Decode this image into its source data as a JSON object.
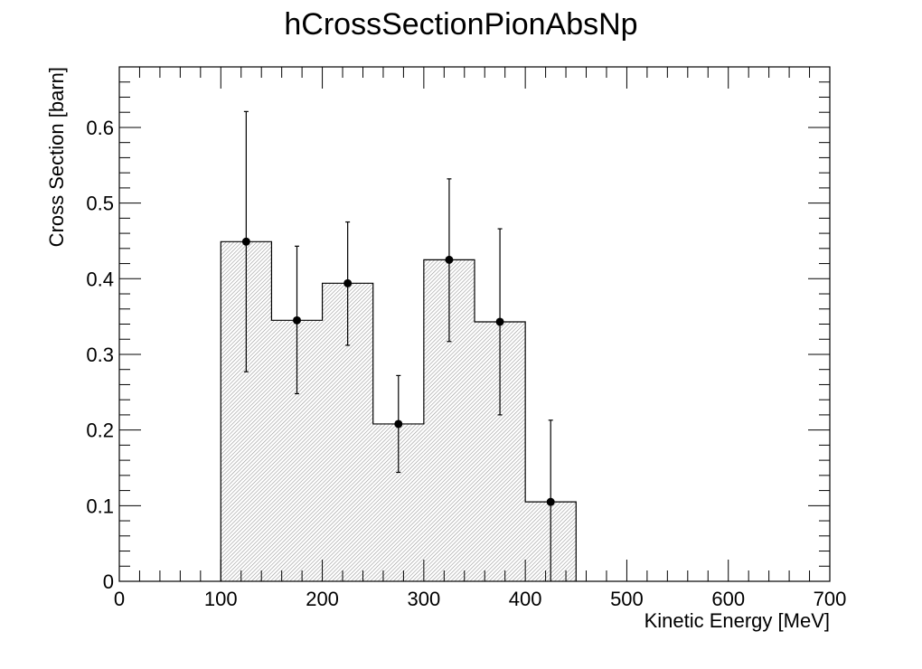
{
  "chart_data": {
    "type": "bar",
    "title": "hCrossSectionPionAbsNp",
    "xlabel": "Kinetic Energy [MeV]",
    "ylabel": "Cross Section [barn]",
    "xlim": [
      0,
      700
    ],
    "ylim": [
      0,
      0.68
    ],
    "bin_width": 50,
    "bins": [
      {
        "x": 125,
        "low": 100,
        "high": 150,
        "value": 0.449,
        "err_low": 0.277,
        "err_high": 0.621
      },
      {
        "x": 175,
        "low": 150,
        "high": 200,
        "value": 0.345,
        "err_low": 0.248,
        "err_high": 0.443
      },
      {
        "x": 225,
        "low": 200,
        "high": 250,
        "value": 0.394,
        "err_low": 0.312,
        "err_high": 0.475
      },
      {
        "x": 275,
        "low": 250,
        "high": 300,
        "value": 0.208,
        "err_low": 0.144,
        "err_high": 0.272
      },
      {
        "x": 325,
        "low": 300,
        "high": 350,
        "value": 0.425,
        "err_low": 0.317,
        "err_high": 0.532
      },
      {
        "x": 375,
        "low": 350,
        "high": 400,
        "value": 0.343,
        "err_low": 0.22,
        "err_high": 0.466
      },
      {
        "x": 425,
        "low": 400,
        "high": 450,
        "value": 0.105,
        "err_low": 0.0,
        "err_high": 0.213
      }
    ],
    "x_ticks": [
      {
        "value": 0,
        "label": "0"
      },
      {
        "value": 100,
        "label": "100"
      },
      {
        "value": 200,
        "label": "200"
      },
      {
        "value": 300,
        "label": "300"
      },
      {
        "value": 400,
        "label": "400"
      },
      {
        "value": 500,
        "label": "500"
      },
      {
        "value": 600,
        "label": "600"
      },
      {
        "value": 700,
        "label": "700"
      }
    ],
    "y_ticks": [
      {
        "value": 0,
        "label": "0"
      },
      {
        "value": 0.1,
        "label": "0.1"
      },
      {
        "value": 0.2,
        "label": "0.2"
      },
      {
        "value": 0.3,
        "label": "0.3"
      },
      {
        "value": 0.4,
        "label": "0.4"
      },
      {
        "value": 0.5,
        "label": "0.5"
      },
      {
        "value": 0.6,
        "label": "0.6"
      }
    ],
    "grid": false,
    "fill_style": "hatched-gray"
  }
}
